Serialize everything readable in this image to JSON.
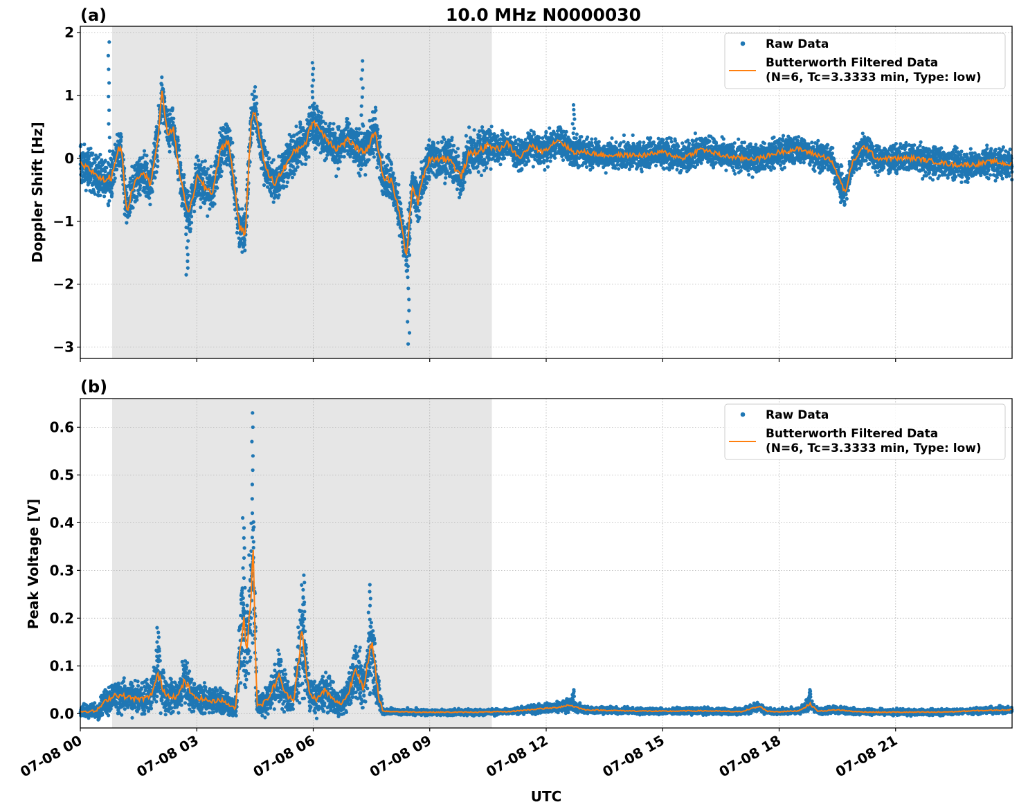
{
  "figure": {
    "title": "10.0 MHz N0000030",
    "shaded_region_hours": [
      0.82,
      10.6
    ],
    "shade_color": "#e6e6e6",
    "raw_color": "#1f77b4",
    "filtered_color": "#ff7f0e"
  },
  "legend": {
    "raw_label": "Raw Data",
    "filtered_label_line1": "Butterworth Filtered Data",
    "filtered_label_line2": "(N=6, Tc=3.3333 min, Type: low)"
  },
  "xaxis": {
    "label": "UTC",
    "range_hours": [
      0,
      24
    ],
    "ticks_hours": [
      0,
      3,
      6,
      9,
      12,
      15,
      18,
      21
    ],
    "tick_labels": [
      "07-08 00",
      "07-08 03",
      "07-08 06",
      "07-08 09",
      "07-08 12",
      "07-08 15",
      "07-08 18",
      "07-08 21"
    ]
  },
  "chart_data": [
    {
      "panel": "(a)",
      "type": "scatter",
      "title": "10.0 MHz N0000030",
      "xlabel": "UTC",
      "ylabel": "Doppler Shift [Hz]",
      "ylim": [
        -3.18,
        2.1
      ],
      "yticks": [
        2,
        1,
        0,
        -1,
        -2,
        -3
      ],
      "ytick_labels": [
        "2",
        "1",
        "0",
        "−1",
        "−2",
        "−3"
      ],
      "grid": true,
      "legend_position": "upper right",
      "series": [
        {
          "name": "Butterworth Filtered Data (N=6, Tc=3.3333 min, Type: low)",
          "kind": "line",
          "x_hours": [
            0,
            0.3,
            0.6,
            0.8,
            0.95,
            1.05,
            1.2,
            1.4,
            1.6,
            1.8,
            2.0,
            2.1,
            2.25,
            2.4,
            2.6,
            2.8,
            3.0,
            3.2,
            3.4,
            3.6,
            3.8,
            3.95,
            4.1,
            4.25,
            4.4,
            4.5,
            4.65,
            4.8,
            5.0,
            5.2,
            5.5,
            5.8,
            6.0,
            6.3,
            6.6,
            6.9,
            7.2,
            7.4,
            7.6,
            7.8,
            8.0,
            8.2,
            8.4,
            8.55,
            8.7,
            8.85,
            9.0,
            9.2,
            9.5,
            9.8,
            10.0,
            10.2,
            10.5,
            10.8,
            11.0,
            11.3,
            11.6,
            11.9,
            12.3,
            12.7,
            13.0,
            13.5,
            14.0,
            14.5,
            15.0,
            15.5,
            16.0,
            16.5,
            17.0,
            17.5,
            18.0,
            18.5,
            19.0,
            19.3,
            19.5,
            19.7,
            19.9,
            20.2,
            20.5,
            21.0,
            21.5,
            22.0,
            22.5,
            23.0,
            23.5,
            24.0
          ],
          "values": [
            -0.1,
            -0.2,
            -0.35,
            -0.3,
            0.1,
            0.2,
            -0.85,
            -0.35,
            -0.2,
            -0.4,
            0.3,
            1.05,
            0.4,
            0.45,
            -0.4,
            -0.9,
            -0.3,
            -0.45,
            -0.55,
            0.1,
            0.3,
            -0.3,
            -1.1,
            -1.2,
            0.6,
            0.8,
            0.2,
            -0.2,
            -0.4,
            -0.2,
            0.1,
            0.25,
            0.6,
            0.35,
            0.15,
            0.3,
            0.1,
            0.15,
            0.45,
            -0.3,
            -0.35,
            -0.8,
            -1.55,
            -0.45,
            -0.7,
            -0.25,
            0.0,
            0.0,
            0.0,
            -0.3,
            0.05,
            0.1,
            0.2,
            0.15,
            0.25,
            0.0,
            0.2,
            0.1,
            0.3,
            0.1,
            0.1,
            0.05,
            0.05,
            0.05,
            0.1,
            0.0,
            0.15,
            0.05,
            0.0,
            0.0,
            0.1,
            0.15,
            0.05,
            0.0,
            -0.25,
            -0.55,
            -0.05,
            0.2,
            0.0,
            0.0,
            0.0,
            -0.05,
            -0.1,
            -0.1,
            -0.05,
            -0.1
          ]
        },
        {
          "name": "Raw Data",
          "kind": "scatter",
          "approx_spread_hz": 0.3,
          "notable_extremes": [
            {
              "x_hours": 0.73,
              "y": 1.85
            },
            {
              "x_hours": 2.75,
              "y": -1.85
            },
            {
              "x_hours": 6.0,
              "y": 1.52
            },
            {
              "x_hours": 7.25,
              "y": 1.55
            },
            {
              "x_hours": 8.45,
              "y": -2.95
            },
            {
              "x_hours": 12.7,
              "y": 0.85
            },
            {
              "x_hours": 19.6,
              "y": -0.7
            }
          ]
        }
      ]
    },
    {
      "panel": "(b)",
      "type": "scatter",
      "xlabel": "UTC",
      "ylabel": "Peak Voltage [V]",
      "ylim": [
        -0.03,
        0.66
      ],
      "yticks": [
        0.6,
        0.5,
        0.4,
        0.3,
        0.2,
        0.1,
        0.0
      ],
      "ytick_labels": [
        "0.6",
        "0.5",
        "0.4",
        "0.3",
        "0.2",
        "0.1",
        "0.0"
      ],
      "grid": true,
      "legend_position": "upper right",
      "series": [
        {
          "name": "Butterworth Filtered Data (N=6, Tc=3.3333 min, Type: low)",
          "kind": "line",
          "x_hours": [
            0,
            0.4,
            0.7,
            0.9,
            1.2,
            1.5,
            1.8,
            2.0,
            2.2,
            2.5,
            2.7,
            2.9,
            3.2,
            3.4,
            3.6,
            3.8,
            4.0,
            4.1,
            4.2,
            4.3,
            4.45,
            4.55,
            4.7,
            4.9,
            5.1,
            5.3,
            5.5,
            5.7,
            5.9,
            6.1,
            6.3,
            6.5,
            6.7,
            6.9,
            7.1,
            7.3,
            7.5,
            7.7,
            7.8,
            8.2,
            9.0,
            10.0,
            11.0,
            11.8,
            12.2,
            12.6,
            13.0,
            14.0,
            15.0,
            16.0,
            17.0,
            17.5,
            17.7,
            18.0,
            18.5,
            18.8,
            19.0,
            19.5,
            20.0,
            20.5,
            21.0,
            22.0,
            22.5,
            23.0,
            24.0
          ],
          "values": [
            0.005,
            0.005,
            0.03,
            0.04,
            0.035,
            0.03,
            0.035,
            0.08,
            0.04,
            0.035,
            0.07,
            0.035,
            0.03,
            0.025,
            0.03,
            0.02,
            0.01,
            0.12,
            0.2,
            0.14,
            0.33,
            0.02,
            0.02,
            0.04,
            0.08,
            0.04,
            0.03,
            0.17,
            0.04,
            0.03,
            0.05,
            0.03,
            0.02,
            0.04,
            0.1,
            0.05,
            0.15,
            0.03,
            0.005,
            0.004,
            0.003,
            0.003,
            0.004,
            0.01,
            0.012,
            0.018,
            0.008,
            0.006,
            0.005,
            0.006,
            0.004,
            0.015,
            0.005,
            0.004,
            0.006,
            0.02,
            0.005,
            0.008,
            0.004,
            0.003,
            0.003,
            0.003,
            0.004,
            0.006,
            0.008
          ]
        },
        {
          "name": "Raw Data",
          "kind": "scatter",
          "notable_extremes": [
            {
              "x_hours": 4.45,
              "y": 0.63
            },
            {
              "x_hours": 4.2,
              "y": 0.41
            },
            {
              "x_hours": 5.75,
              "y": 0.29
            },
            {
              "x_hours": 7.45,
              "y": 0.27
            },
            {
              "x_hours": 2.0,
              "y": 0.18
            },
            {
              "x_hours": 12.7,
              "y": 0.05
            },
            {
              "x_hours": 18.8,
              "y": 0.05
            }
          ]
        }
      ]
    }
  ],
  "panels": {
    "a": {
      "label": "(a)"
    },
    "b": {
      "label": "(b)"
    }
  }
}
